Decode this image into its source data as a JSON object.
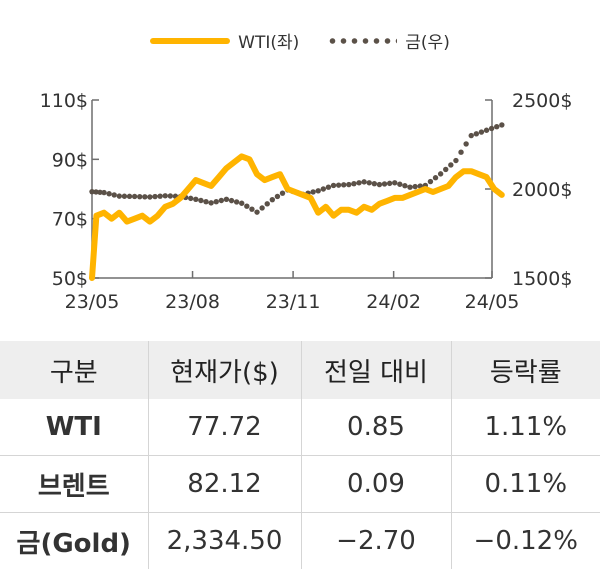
{
  "legend": {
    "wti_label": "WTI(좌)",
    "gold_label": "금(우)"
  },
  "chart_data": {
    "type": "line",
    "x_ticks": [
      "23/05",
      "23/08",
      "23/11",
      "24/02",
      "24/05"
    ],
    "y_left": {
      "ticks": [
        "110$",
        "90$",
        "70$",
        "50$"
      ],
      "range": [
        50,
        110
      ]
    },
    "y_right": {
      "ticks": [
        "2500$",
        "2000$",
        "1500$"
      ],
      "range": [
        1500,
        2500
      ]
    },
    "colors": {
      "wti": "#ffb400",
      "gold": "#5b5148"
    },
    "series": [
      {
        "name": "WTI(좌)",
        "axis": "left",
        "x": [
          "23/05/01",
          "23/05/05",
          "23/05/12",
          "23/05/19",
          "23/05/26",
          "23/06/02",
          "23/06/09",
          "23/06/16",
          "23/06/23",
          "23/06/30",
          "23/07/07",
          "23/07/14",
          "23/07/21",
          "23/07/28",
          "23/08/04",
          "23/08/11",
          "23/08/18",
          "23/08/25",
          "23/09/01",
          "23/09/08",
          "23/09/15",
          "23/09/22",
          "23/09/29",
          "23/10/06",
          "23/10/13",
          "23/10/20",
          "23/10/27",
          "23/11/03",
          "23/11/10",
          "23/11/17",
          "23/11/24",
          "23/12/01",
          "23/12/08",
          "23/12/15",
          "23/12/22",
          "23/12/29",
          "24/01/05",
          "24/01/12",
          "24/01/19",
          "24/01/26",
          "24/02/02",
          "24/02/09",
          "24/02/16",
          "24/02/23",
          "24/03/01",
          "24/03/08",
          "24/03/15",
          "24/03/22",
          "24/03/29",
          "24/04/05",
          "24/04/12",
          "24/04/19",
          "24/04/26",
          "24/05/03",
          "24/05/10"
        ],
        "values": [
          50,
          71,
          72,
          70,
          72,
          69,
          70,
          71,
          69,
          71,
          74,
          75,
          77,
          80,
          83,
          82,
          81,
          84,
          87,
          89,
          91,
          90,
          85,
          83,
          84,
          85,
          80,
          79,
          78,
          77,
          72,
          74,
          71,
          73,
          73,
          72,
          74,
          73,
          75,
          76,
          77,
          77,
          78,
          79,
          80,
          79,
          80,
          81,
          84,
          86,
          86,
          85,
          84,
          80,
          78
        ]
      },
      {
        "name": "금(우)",
        "axis": "right",
        "x": [
          "23/05/01",
          "23/05/12",
          "23/05/26",
          "23/06/09",
          "23/06/23",
          "23/07/07",
          "23/07/21",
          "23/08/04",
          "23/08/18",
          "23/09/01",
          "23/09/15",
          "23/09/29",
          "23/10/13",
          "23/10/27",
          "23/11/10",
          "23/11/24",
          "23/12/08",
          "23/12/22",
          "24/01/05",
          "24/01/19",
          "24/02/02",
          "24/02/16",
          "24/03/01",
          "24/03/15",
          "24/03/29",
          "24/04/12",
          "24/04/26",
          "24/05/10"
        ],
        "values": [
          1985,
          1980,
          1960,
          1958,
          1955,
          1962,
          1958,
          1942,
          1922,
          1942,
          1920,
          1870,
          1940,
          1995,
          1970,
          1990,
          2020,
          2025,
          2040,
          2025,
          2035,
          2010,
          2020,
          2085,
          2160,
          2300,
          2330,
          2360
        ]
      }
    ]
  },
  "table": {
    "headers": [
      "구분",
      "현재가($)",
      "전일 대비",
      "등락률"
    ],
    "rows": [
      [
        "WTI",
        "77.72",
        "0.85",
        "1.11%"
      ],
      [
        "브렌트",
        "82.12",
        "0.09",
        "0.11%"
      ],
      [
        "금(Gold)",
        "2,334.50",
        "−2.70",
        "−0.12%"
      ]
    ]
  }
}
